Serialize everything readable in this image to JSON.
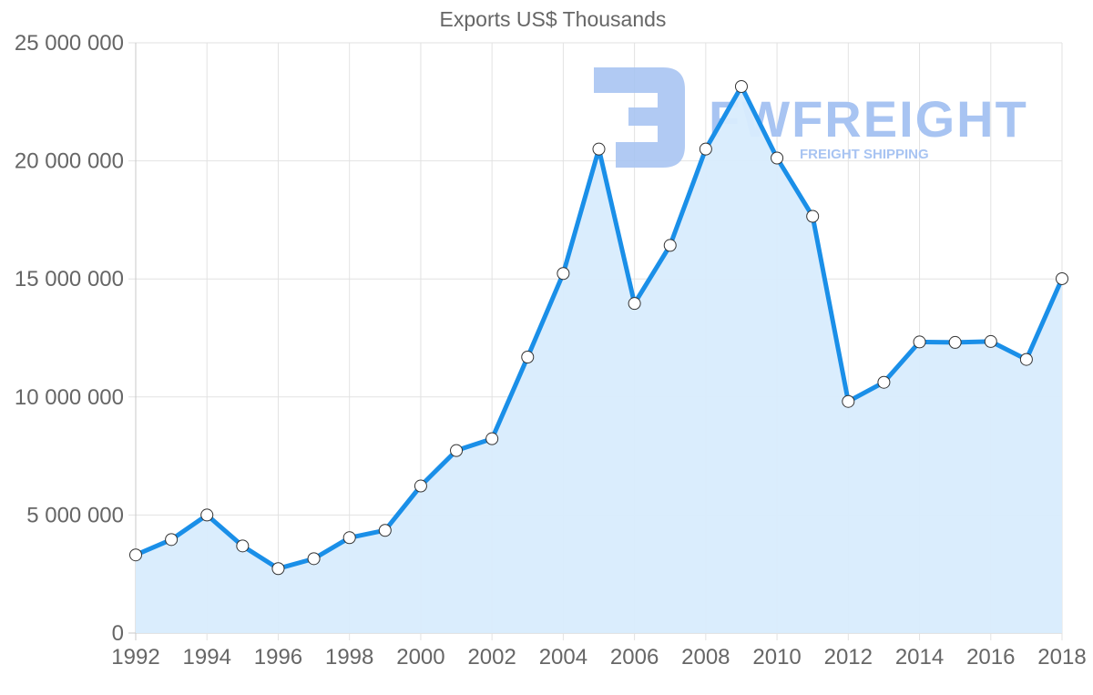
{
  "chart_data": {
    "type": "area",
    "title": "Exports US$ Thousands",
    "xlabel": "",
    "ylabel": "",
    "x": [
      1992,
      1993,
      1994,
      1995,
      1996,
      1997,
      1998,
      1999,
      2000,
      2001,
      2002,
      2003,
      2004,
      2005,
      2006,
      2007,
      2008,
      2009,
      2010,
      2011,
      2012,
      2013,
      2014,
      2015,
      2016,
      2017,
      2018
    ],
    "series": [
      {
        "name": "Exports US$ Thousands",
        "values": [
          3310000,
          3960000,
          5000000,
          3690000,
          2730000,
          3150000,
          4040000,
          4350000,
          6230000,
          7730000,
          8230000,
          11690000,
          15230000,
          20500000,
          13960000,
          16420000,
          20500000,
          23150000,
          20120000,
          17650000,
          9810000,
          10620000,
          12330000,
          12310000,
          12350000,
          11590000,
          15010000
        ]
      }
    ],
    "ylim": [
      0,
      25000000
    ],
    "xlim": [
      1992,
      2018
    ],
    "y_ticks": [
      "0",
      "5 000 000",
      "10 000 000",
      "15 000 000",
      "20 000 000",
      "25 000 000"
    ],
    "x_ticks": [
      "1992",
      "1994",
      "1996",
      "1998",
      "2000",
      "2002",
      "2004",
      "2006",
      "2008",
      "2010",
      "2012",
      "2014",
      "2016",
      "2018"
    ],
    "grid": true,
    "legend": "none",
    "colors": {
      "line": "#1a8fe8",
      "fill": "#d8ecfd",
      "point_fill": "#ffffff",
      "point_stroke": "#333333",
      "grid": "#e2e2e2",
      "text": "#666666"
    }
  },
  "watermark": {
    "brand": "FWFREIGHT",
    "tagline": "FREIGHT SHIPPING",
    "color": "#a8c4f2"
  }
}
